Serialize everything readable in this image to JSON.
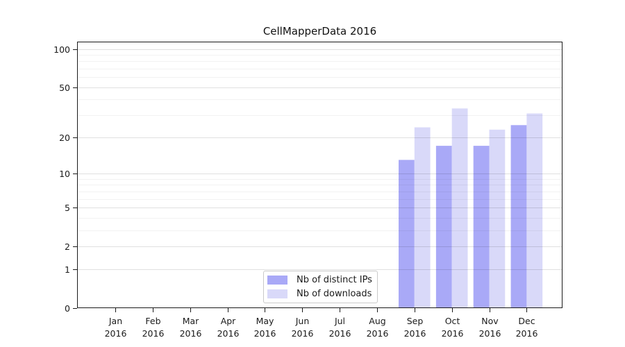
{
  "figure": {
    "title": "CellMapperData 2016"
  },
  "chart_data": {
    "type": "bar",
    "title": "CellMapperData 2016",
    "x": {
      "months": [
        "Jan",
        "Feb",
        "Mar",
        "Apr",
        "May",
        "Jun",
        "Jul",
        "Aug",
        "Sep",
        "Oct",
        "Nov",
        "Dec"
      ],
      "year": "2016"
    },
    "series": [
      {
        "name": "Nb of distinct IPs",
        "color": "#a9a9f7",
        "values": [
          0,
          0,
          0,
          0,
          0,
          0,
          0,
          0,
          13,
          17,
          17,
          25
        ]
      },
      {
        "name": "Nb of downloads",
        "color": "#d9d9f9",
        "values": [
          0,
          0,
          0,
          0,
          0,
          0,
          0,
          0,
          24,
          34,
          23,
          31
        ]
      }
    ],
    "y_axis": {
      "scale": "log1p",
      "major_ticks": [
        0,
        1,
        2,
        5,
        10,
        20,
        50,
        100
      ],
      "minor_ticks": [
        3,
        4,
        6,
        7,
        8,
        9,
        30,
        40,
        60,
        70,
        80,
        90
      ],
      "max": 114
    },
    "legend": {
      "position": "lower-center-inside"
    },
    "grid": true,
    "colors": {
      "spine": "#1a1a1a",
      "major_grid": "rgba(0,0,0,0.12)",
      "minor_grid": "rgba(0,0,0,0.05)"
    }
  }
}
